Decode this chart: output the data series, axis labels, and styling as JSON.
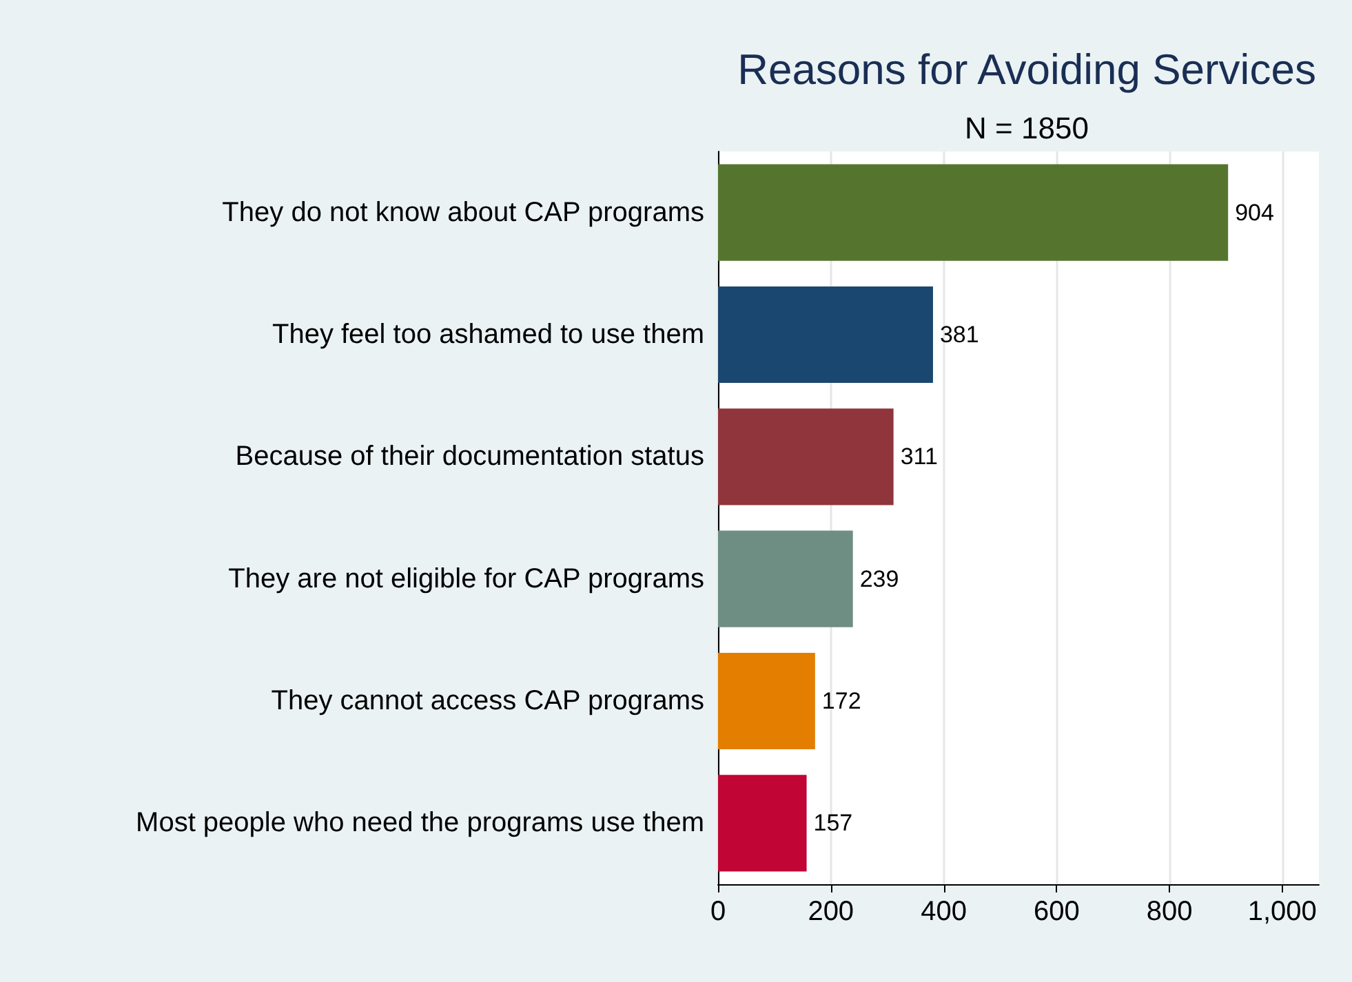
{
  "chart_data": {
    "type": "bar",
    "orientation": "horizontal",
    "title": "Reasons for Avoiding Services",
    "subtitle": "N = 1850",
    "categories": [
      "They do not know about CAP programs",
      "They feel too ashamed to use them",
      "Because of their documentation status",
      "They are not eligible for CAP programs",
      "They cannot access CAP programs",
      "Most people who need the programs use them"
    ],
    "values": [
      904,
      381,
      311,
      239,
      172,
      157
    ],
    "colors": [
      "#55752f",
      "#1a476f",
      "#90353b",
      "#6e8e84",
      "#e37e00",
      "#c10534"
    ],
    "xlim": [
      0,
      1065
    ],
    "xticks": [
      0,
      200,
      400,
      600,
      800,
      {
        "value": 1000,
        "label": "1,000"
      }
    ],
    "grid": "x",
    "data_labels": true
  }
}
